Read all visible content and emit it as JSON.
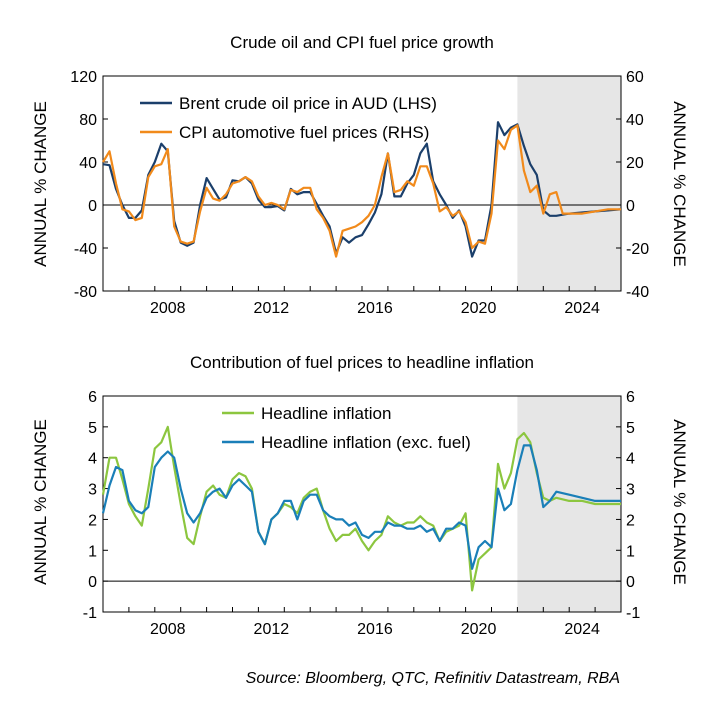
{
  "source": "Source: Bloomberg, QTC, Refinitiv Datastream, RBA",
  "colors": {
    "brent": "#1b3f6b",
    "cpi_fuel": "#f18a1b",
    "headline": "#8cc63f",
    "headline_ex_fuel": "#1a7fb8",
    "forecast_shade": "#e6e6e6",
    "axis": "#000000"
  },
  "chart_data": [
    {
      "type": "line",
      "title": "Crude oil and CPI fuel price growth",
      "ylabel_left": "ANNUAL % CHANGE",
      "ylabel_right": "ANNUAL % CHANGE",
      "xlim": [
        2006.0,
        2026.0
      ],
      "ylim_left": [
        -80,
        120
      ],
      "ylim_right": [
        -40,
        60
      ],
      "yticks_left": [
        "120",
        "80",
        "40",
        "0",
        "-40",
        "-80"
      ],
      "yticks_right": [
        "60",
        "40",
        "20",
        "0",
        "-20",
        "-40"
      ],
      "xticks": [
        "2008",
        "2012",
        "2016",
        "2020",
        "2024"
      ],
      "forecast_from": 2022.0,
      "legend_position": "top-left",
      "series": [
        {
          "name": "Brent crude oil price in AUD (LHS)",
          "axis": "left",
          "x": [
            2006.0,
            2006.25,
            2006.5,
            2006.75,
            2007.0,
            2007.25,
            2007.5,
            2007.75,
            2008.0,
            2008.25,
            2008.5,
            2008.75,
            2009.0,
            2009.25,
            2009.5,
            2009.75,
            2010.0,
            2010.25,
            2010.5,
            2010.75,
            2011.0,
            2011.25,
            2011.5,
            2011.75,
            2012.0,
            2012.25,
            2012.5,
            2012.75,
            2013.0,
            2013.25,
            2013.5,
            2013.75,
            2014.0,
            2014.25,
            2014.5,
            2014.75,
            2015.0,
            2015.25,
            2015.5,
            2015.75,
            2016.0,
            2016.25,
            2016.5,
            2016.75,
            2017.0,
            2017.25,
            2017.5,
            2017.75,
            2018.0,
            2018.25,
            2018.5,
            2018.75,
            2019.0,
            2019.25,
            2019.5,
            2019.75,
            2020.0,
            2020.25,
            2020.5,
            2020.75,
            2021.0,
            2021.25,
            2021.5,
            2021.75,
            2022.0,
            2022.25,
            2022.5,
            2022.75,
            2023.0,
            2023.25,
            2023.5,
            2023.75,
            2024.0,
            2024.5,
            2025.0,
            2025.5,
            2026.0
          ],
          "values": [
            38,
            37,
            15,
            0,
            -12,
            -12,
            -5,
            28,
            40,
            57,
            50,
            -15,
            -35,
            -38,
            -35,
            0,
            25,
            15,
            5,
            7,
            23,
            22,
            26,
            20,
            5,
            -2,
            -2,
            -1,
            -5,
            15,
            10,
            12,
            12,
            1,
            -10,
            -20,
            -45,
            -30,
            -35,
            -30,
            -28,
            -18,
            -7,
            10,
            48,
            8,
            8,
            20,
            28,
            48,
            57,
            22,
            10,
            0,
            -12,
            -5,
            -20,
            -48,
            -33,
            -33,
            0,
            77,
            65,
            72,
            75,
            55,
            38,
            28,
            -5,
            -10,
            -10,
            -9,
            -8,
            -7,
            -6,
            -5,
            -4
          ]
        },
        {
          "name": "CPI automotive fuel prices (RHS)",
          "axis": "right",
          "x": [
            2006.0,
            2006.25,
            2006.5,
            2006.75,
            2007.0,
            2007.25,
            2007.5,
            2007.75,
            2008.0,
            2008.25,
            2008.5,
            2008.75,
            2009.0,
            2009.25,
            2009.5,
            2009.75,
            2010.0,
            2010.25,
            2010.5,
            2010.75,
            2011.0,
            2011.25,
            2011.5,
            2011.75,
            2012.0,
            2012.25,
            2012.5,
            2012.75,
            2013.0,
            2013.25,
            2013.5,
            2013.75,
            2014.0,
            2014.25,
            2014.5,
            2014.75,
            2015.0,
            2015.25,
            2015.5,
            2015.75,
            2016.0,
            2016.25,
            2016.5,
            2016.75,
            2017.0,
            2017.25,
            2017.5,
            2017.75,
            2018.0,
            2018.25,
            2018.5,
            2018.75,
            2019.0,
            2019.25,
            2019.5,
            2019.75,
            2020.0,
            2020.25,
            2020.5,
            2020.75,
            2021.0,
            2021.25,
            2021.5,
            2021.75,
            2022.0,
            2022.25,
            2022.5,
            2022.75,
            2023.0,
            2023.25,
            2023.5,
            2023.75,
            2024.0,
            2024.5,
            2025.0,
            2025.5,
            2026.0
          ],
          "values": [
            20,
            25,
            10,
            -2,
            -3,
            -7,
            -6,
            13,
            18,
            19,
            26,
            -10,
            -17,
            -18,
            -17,
            -3,
            8,
            3,
            2,
            5,
            10,
            11,
            13,
            11,
            4,
            0,
            1,
            0,
            -2,
            7,
            6,
            8,
            8,
            -2,
            -6,
            -12,
            -24,
            -12,
            -11,
            -10,
            -8,
            -5,
            0,
            13,
            24,
            6,
            7,
            11,
            9,
            18,
            18,
            10,
            -3,
            -1,
            -5,
            -3,
            -8,
            -20,
            -17,
            -18,
            -4,
            30,
            26,
            35,
            37,
            16,
            6,
            9,
            -4,
            5,
            6,
            -4,
            -4,
            -4,
            -3,
            -2,
            -2
          ]
        }
      ]
    },
    {
      "type": "line",
      "title": "Contribution of fuel prices to headline inflation",
      "ylabel_left": "ANNUAL % CHANGE",
      "ylabel_right": "ANNUAL % CHANGE",
      "xlim": [
        2006.0,
        2026.0
      ],
      "ylim_left": [
        -1,
        6
      ],
      "ylim_right": [
        -1,
        6
      ],
      "yticks_left": [
        "6",
        "5",
        "4",
        "3",
        "2",
        "1",
        "0",
        "-1"
      ],
      "yticks_right": [
        "6",
        "5",
        "4",
        "3",
        "2",
        "1",
        "0",
        "-1"
      ],
      "xticks": [
        "2008",
        "2012",
        "2016",
        "2020",
        "2024"
      ],
      "forecast_from": 2022.0,
      "legend_position": "top-center",
      "series": [
        {
          "name": "Headline inflation",
          "axis": "left",
          "x": [
            2006.0,
            2006.25,
            2006.5,
            2006.75,
            2007.0,
            2007.25,
            2007.5,
            2007.75,
            2008.0,
            2008.25,
            2008.5,
            2008.75,
            2009.0,
            2009.25,
            2009.5,
            2009.75,
            2010.0,
            2010.25,
            2010.5,
            2010.75,
            2011.0,
            2011.25,
            2011.5,
            2011.75,
            2012.0,
            2012.25,
            2012.5,
            2012.75,
            2013.0,
            2013.25,
            2013.5,
            2013.75,
            2014.0,
            2014.25,
            2014.5,
            2014.75,
            2015.0,
            2015.25,
            2015.5,
            2015.75,
            2016.0,
            2016.25,
            2016.5,
            2016.75,
            2017.0,
            2017.25,
            2017.5,
            2017.75,
            2018.0,
            2018.25,
            2018.5,
            2018.75,
            2019.0,
            2019.25,
            2019.5,
            2019.75,
            2020.0,
            2020.25,
            2020.5,
            2020.75,
            2021.0,
            2021.25,
            2021.5,
            2021.75,
            2022.0,
            2022.25,
            2022.5,
            2022.75,
            2023.0,
            2023.25,
            2023.5,
            2024.0,
            2024.5,
            2025.0,
            2025.5,
            2026.0
          ],
          "values": [
            2.8,
            4.0,
            4.0,
            3.3,
            2.5,
            2.1,
            1.8,
            3.0,
            4.3,
            4.5,
            5.0,
            3.7,
            2.5,
            1.4,
            1.2,
            2.1,
            2.9,
            3.1,
            2.8,
            2.7,
            3.3,
            3.5,
            3.4,
            3.0,
            1.6,
            1.2,
            2.0,
            2.2,
            2.5,
            2.4,
            2.2,
            2.7,
            2.9,
            3.0,
            2.3,
            1.7,
            1.3,
            1.5,
            1.5,
            1.7,
            1.3,
            1.0,
            1.3,
            1.5,
            2.1,
            1.9,
            1.8,
            1.9,
            1.9,
            2.1,
            1.9,
            1.8,
            1.3,
            1.6,
            1.7,
            1.8,
            2.2,
            -0.3,
            0.7,
            0.9,
            1.1,
            3.8,
            3.0,
            3.5,
            4.6,
            4.8,
            4.5,
            3.5,
            2.7,
            2.6,
            2.7,
            2.6,
            2.6,
            2.5,
            2.5,
            2.5
          ]
        },
        {
          "name": "Headline inflation (exc. fuel)",
          "axis": "left",
          "x": [
            2006.0,
            2006.25,
            2006.5,
            2006.75,
            2007.0,
            2007.25,
            2007.5,
            2007.75,
            2008.0,
            2008.25,
            2008.5,
            2008.75,
            2009.0,
            2009.25,
            2009.5,
            2009.75,
            2010.0,
            2010.25,
            2010.5,
            2010.75,
            2011.0,
            2011.25,
            2011.5,
            2011.75,
            2012.0,
            2012.25,
            2012.5,
            2012.75,
            2013.0,
            2013.25,
            2013.5,
            2013.75,
            2014.0,
            2014.25,
            2014.5,
            2014.75,
            2015.0,
            2015.25,
            2015.5,
            2015.75,
            2016.0,
            2016.25,
            2016.5,
            2016.75,
            2017.0,
            2017.25,
            2017.5,
            2017.75,
            2018.0,
            2018.25,
            2018.5,
            2018.75,
            2019.0,
            2019.25,
            2019.5,
            2019.75,
            2020.0,
            2020.25,
            2020.5,
            2020.75,
            2021.0,
            2021.25,
            2021.5,
            2021.75,
            2022.0,
            2022.25,
            2022.5,
            2022.75,
            2023.0,
            2023.25,
            2023.5,
            2024.0,
            2024.5,
            2025.0,
            2025.5,
            2026.0
          ],
          "values": [
            2.2,
            3.1,
            3.7,
            3.6,
            2.6,
            2.3,
            2.2,
            2.4,
            3.7,
            4.0,
            4.2,
            4.0,
            3.0,
            2.2,
            1.9,
            2.2,
            2.7,
            2.9,
            3.0,
            2.7,
            3.1,
            3.3,
            3.1,
            2.9,
            1.6,
            1.2,
            2.0,
            2.2,
            2.6,
            2.6,
            2.0,
            2.6,
            2.8,
            2.8,
            2.3,
            2.1,
            2.0,
            2.0,
            1.8,
            1.9,
            1.5,
            1.4,
            1.6,
            1.6,
            1.9,
            1.8,
            1.8,
            1.7,
            1.7,
            1.8,
            1.6,
            1.7,
            1.3,
            1.7,
            1.7,
            1.9,
            1.8,
            0.4,
            1.1,
            1.3,
            1.1,
            3.0,
            2.3,
            2.5,
            3.6,
            4.4,
            4.4,
            3.6,
            2.4,
            2.6,
            2.9,
            2.8,
            2.7,
            2.6,
            2.6,
            2.6
          ]
        }
      ]
    }
  ]
}
